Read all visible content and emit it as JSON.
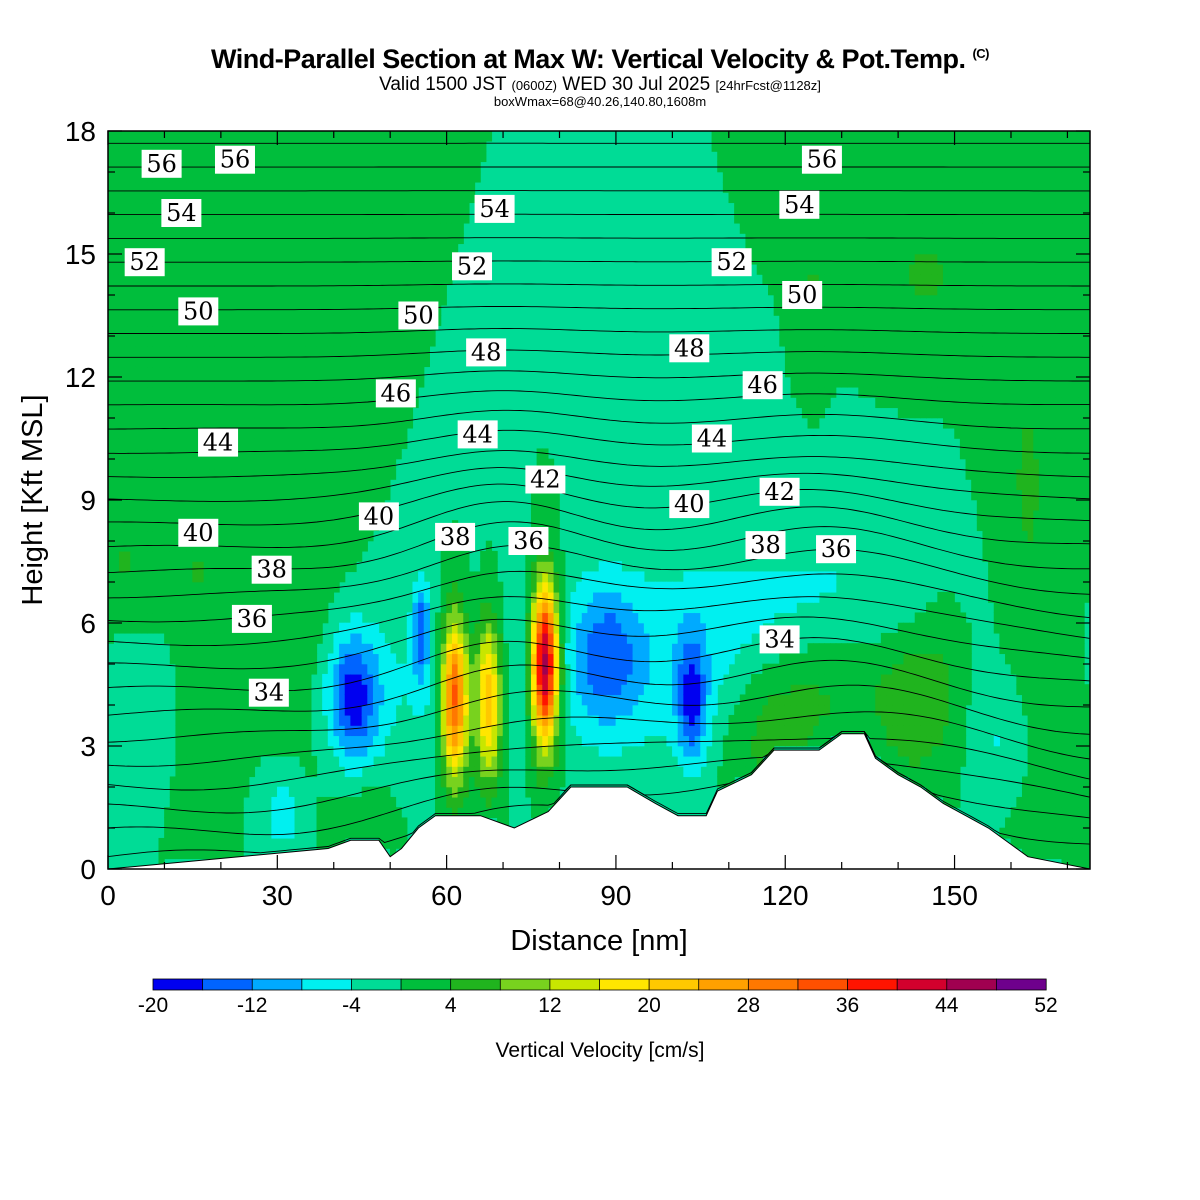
{
  "header": {
    "title_main": "Wind-Parallel Section at Max W: Vertical Velocity & Pot.Temp.",
    "title_mark": "(C)",
    "valid_prefix": "Valid 1500 JST",
    "valid_utc": "(0600Z)",
    "valid_date": "WED 30 Jul 2025",
    "valid_fcst": "[24hrFcst@1128z]",
    "box_info": "boxWmax=68@40.26,140.80,1608m"
  },
  "chart_data": {
    "type": "heatmap",
    "title": "Wind-Parallel Section at Max W: Vertical Velocity & Pot.Temp.",
    "xlabel": "Distance [nm]",
    "ylabel": "Height [Kft MSL]",
    "xlim": [
      0,
      174
    ],
    "ylim": [
      0,
      18
    ],
    "x_ticks": [
      0,
      30,
      60,
      90,
      120,
      150
    ],
    "y_ticks": [
      0,
      3,
      6,
      9,
      12,
      15,
      18
    ],
    "background_color": "#00dc96",
    "colorbar": {
      "title": "Vertical Velocity [cm/s]",
      "levels": [
        -20,
        -16,
        -12,
        -8,
        -4,
        0,
        4,
        8,
        12,
        16,
        20,
        24,
        28,
        32,
        36,
        40,
        44,
        48,
        52
      ],
      "tick_labels": [
        "-20",
        "-12",
        "-4",
        "4",
        "12",
        "20",
        "28",
        "36",
        "44",
        "52"
      ],
      "colors": [
        "#0000f0",
        "#0064ff",
        "#00aaff",
        "#00f0f0",
        "#00dc96",
        "#00be3c",
        "#20b41e",
        "#78d21e",
        "#c8e600",
        "#ffe600",
        "#ffc800",
        "#ffa000",
        "#ff7800",
        "#ff5000",
        "#ff1400",
        "#d2002d",
        "#a00050",
        "#6e008c"
      ]
    },
    "terrain": [
      [
        0,
        0
      ],
      [
        39,
        0.5
      ],
      [
        43,
        0.7
      ],
      [
        48,
        0.7
      ],
      [
        50,
        0.3
      ],
      [
        52,
        0.5
      ],
      [
        55,
        1.0
      ],
      [
        58,
        1.3
      ],
      [
        66,
        1.3
      ],
      [
        72,
        1.0
      ],
      [
        78,
        1.4
      ],
      [
        82,
        2.0
      ],
      [
        92,
        2.0
      ],
      [
        97,
        1.6
      ],
      [
        101,
        1.3
      ],
      [
        106,
        1.3
      ],
      [
        108,
        1.9
      ],
      [
        114,
        2.3
      ],
      [
        118,
        2.9
      ],
      [
        126,
        2.9
      ],
      [
        130,
        3.3
      ],
      [
        134,
        3.3
      ],
      [
        136,
        2.7
      ],
      [
        140,
        2.3
      ],
      [
        144,
        2.0
      ],
      [
        148,
        1.6
      ],
      [
        152,
        1.3
      ],
      [
        156,
        1.0
      ],
      [
        160,
        0.6
      ],
      [
        163,
        0.3
      ],
      [
        174,
        0
      ]
    ],
    "updrafts": [
      {
        "x": 61.5,
        "y": 4.2,
        "peak": 36
      },
      {
        "x": 67.5,
        "y": 4.2,
        "peak": 26
      },
      {
        "x": 77.5,
        "y": 5.0,
        "peak": 50
      }
    ],
    "downdrafts": [
      {
        "x": 43.5,
        "y": 4.2,
        "min": -18
      },
      {
        "x": 55.5,
        "y": 5.8,
        "min": -12
      },
      {
        "x": 88.5,
        "y": 5.2,
        "min": -10
      },
      {
        "x": 103.5,
        "y": 4.1,
        "min": -14
      }
    ],
    "contour_labels": [
      {
        "value": "56",
        "x": 9.5,
        "y": 17.2
      },
      {
        "value": "56",
        "x": 22.5,
        "y": 17.3
      },
      {
        "value": "56",
        "x": 126.5,
        "y": 17.3
      },
      {
        "value": "54",
        "x": 13,
        "y": 16.0
      },
      {
        "value": "54",
        "x": 68.5,
        "y": 16.1
      },
      {
        "value": "54",
        "x": 122.5,
        "y": 16.2
      },
      {
        "value": "52",
        "x": 6.5,
        "y": 14.8
      },
      {
        "value": "52",
        "x": 64.5,
        "y": 14.7
      },
      {
        "value": "52",
        "x": 110.5,
        "y": 14.8
      },
      {
        "value": "50",
        "x": 16,
        "y": 13.6
      },
      {
        "value": "50",
        "x": 55,
        "y": 13.5
      },
      {
        "value": "50",
        "x": 123,
        "y": 14.0
      },
      {
        "value": "48",
        "x": 67,
        "y": 12.6
      },
      {
        "value": "48",
        "x": 103,
        "y": 12.7
      },
      {
        "value": "46",
        "x": 51,
        "y": 11.6
      },
      {
        "value": "46",
        "x": 116,
        "y": 11.8
      },
      {
        "value": "44",
        "x": 19.5,
        "y": 10.4
      },
      {
        "value": "44",
        "x": 65.5,
        "y": 10.6
      },
      {
        "value": "44",
        "x": 107,
        "y": 10.5
      },
      {
        "value": "42",
        "x": 77.5,
        "y": 9.5
      },
      {
        "value": "42",
        "x": 119,
        "y": 9.2
      },
      {
        "value": "40",
        "x": 16,
        "y": 8.2
      },
      {
        "value": "40",
        "x": 48,
        "y": 8.6
      },
      {
        "value": "40",
        "x": 103,
        "y": 8.9
      },
      {
        "value": "38",
        "x": 29,
        "y": 7.3
      },
      {
        "value": "38",
        "x": 61.5,
        "y": 8.1
      },
      {
        "value": "38",
        "x": 116.5,
        "y": 7.9
      },
      {
        "value": "36",
        "x": 25.5,
        "y": 6.1
      },
      {
        "value": "36",
        "x": 74.5,
        "y": 8.0
      },
      {
        "value": "36",
        "x": 129,
        "y": 7.8
      },
      {
        "value": "34",
        "x": 28.5,
        "y": 4.3
      },
      {
        "value": "34",
        "x": 119,
        "y": 5.6
      }
    ]
  }
}
